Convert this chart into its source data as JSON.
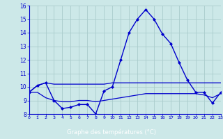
{
  "hours": [
    0,
    1,
    2,
    3,
    4,
    5,
    6,
    7,
    8,
    9,
    10,
    11,
    12,
    13,
    14,
    15,
    16,
    17,
    18,
    19,
    20,
    21,
    22,
    23
  ],
  "temp_main": [
    9.6,
    10.1,
    10.3,
    9.0,
    8.4,
    8.5,
    8.7,
    8.7,
    8.0,
    9.7,
    10.0,
    12.0,
    14.0,
    15.0,
    15.7,
    15.0,
    13.9,
    13.2,
    11.8,
    10.5,
    9.6,
    9.6,
    8.8,
    9.6
  ],
  "temp_high": [
    9.6,
    10.1,
    10.3,
    10.2,
    10.2,
    10.2,
    10.2,
    10.2,
    10.2,
    10.2,
    10.3,
    10.3,
    10.3,
    10.3,
    10.3,
    10.3,
    10.3,
    10.3,
    10.3,
    10.3,
    10.3,
    10.3,
    10.3,
    10.3
  ],
  "temp_low": [
    9.6,
    9.6,
    9.2,
    9.0,
    8.9,
    8.9,
    9.0,
    9.0,
    8.9,
    9.0,
    9.1,
    9.2,
    9.3,
    9.4,
    9.5,
    9.5,
    9.5,
    9.5,
    9.5,
    9.5,
    9.5,
    9.4,
    9.2,
    9.5
  ],
  "line_color": "#0000cc",
  "bg_color": "#cce8e8",
  "plot_bg_color": "#cce8e8",
  "grid_color": "#aacccc",
  "label_bar_color": "#2222aa",
  "xlabel": "Graphe des températures (°C)",
  "ylim": [
    8,
    16
  ],
  "xlim": [
    0,
    23
  ],
  "yticks": [
    8,
    9,
    10,
    11,
    12,
    13,
    14,
    15,
    16
  ],
  "xticks": [
    0,
    1,
    2,
    3,
    4,
    5,
    6,
    7,
    8,
    9,
    10,
    11,
    12,
    13,
    14,
    15,
    16,
    17,
    18,
    19,
    20,
    21,
    22,
    23
  ]
}
